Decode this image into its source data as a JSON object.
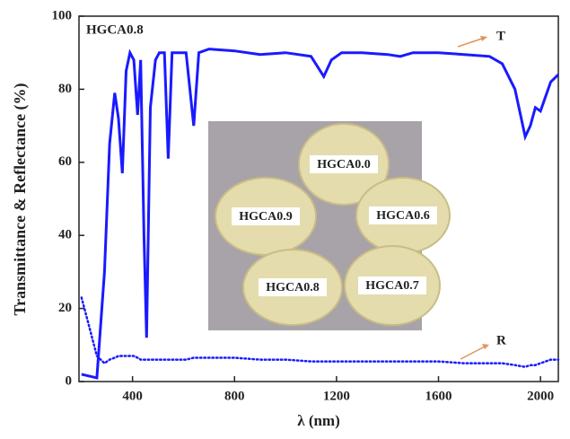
{
  "chart_data": {
    "type": "line",
    "x_label": "λ (nm)",
    "y_label": "Transmittance & Reflectance (%)",
    "annotations": {
      "sample": "HGCA0.8",
      "t": "T",
      "r": "R"
    },
    "x": [
      200,
      230,
      260,
      290,
      310,
      330,
      345,
      360,
      375,
      390,
      405,
      420,
      432,
      445,
      455,
      470,
      490,
      505,
      525,
      540,
      555,
      580,
      610,
      640,
      660,
      700,
      800,
      900,
      1000,
      1100,
      1150,
      1180,
      1220,
      1300,
      1400,
      1450,
      1500,
      1600,
      1700,
      1800,
      1850,
      1900,
      1940,
      1960,
      1980,
      2000,
      2040,
      2070
    ],
    "series": [
      {
        "name": "T",
        "color": "#1a1aff",
        "style": "solid",
        "values": [
          2,
          1.5,
          1,
          30,
          65,
          79,
          72,
          57,
          85,
          90,
          88,
          73,
          88,
          40,
          12,
          75,
          88,
          90,
          90,
          61,
          90,
          90,
          90,
          70,
          90,
          91,
          90.5,
          89.5,
          90,
          89,
          83.5,
          88,
          90,
          90,
          89.5,
          89,
          90,
          90,
          89.5,
          89,
          87,
          80,
          67,
          70,
          75,
          74,
          82,
          84
        ]
      },
      {
        "name": "R",
        "color": "#1a1aff",
        "style": "dotted",
        "values": [
          23,
          15,
          7,
          5,
          6,
          6.5,
          7,
          7,
          7,
          7,
          7,
          6.5,
          6,
          6,
          6,
          6,
          6,
          6,
          6,
          6,
          6,
          6,
          6,
          6.5,
          6.5,
          6.5,
          6.5,
          6,
          6,
          5.5,
          5.5,
          5.5,
          5.5,
          5.5,
          5.5,
          5.5,
          5.5,
          5.5,
          5,
          5,
          5,
          4.5,
          4,
          4.5,
          4.5,
          5,
          6,
          6
        ]
      }
    ],
    "xlim": [
      190,
      2070
    ],
    "ylim": [
      0,
      100
    ],
    "xticks": [
      400,
      800,
      1200,
      1600,
      2000
    ],
    "yticks": [
      0,
      20,
      40,
      60,
      80,
      100
    ],
    "inset": {
      "labels": [
        "HGCA0.0",
        "HGCA0.9",
        "HGCA0.6",
        "HGCA0.8",
        "HGCA0.7"
      ]
    }
  }
}
